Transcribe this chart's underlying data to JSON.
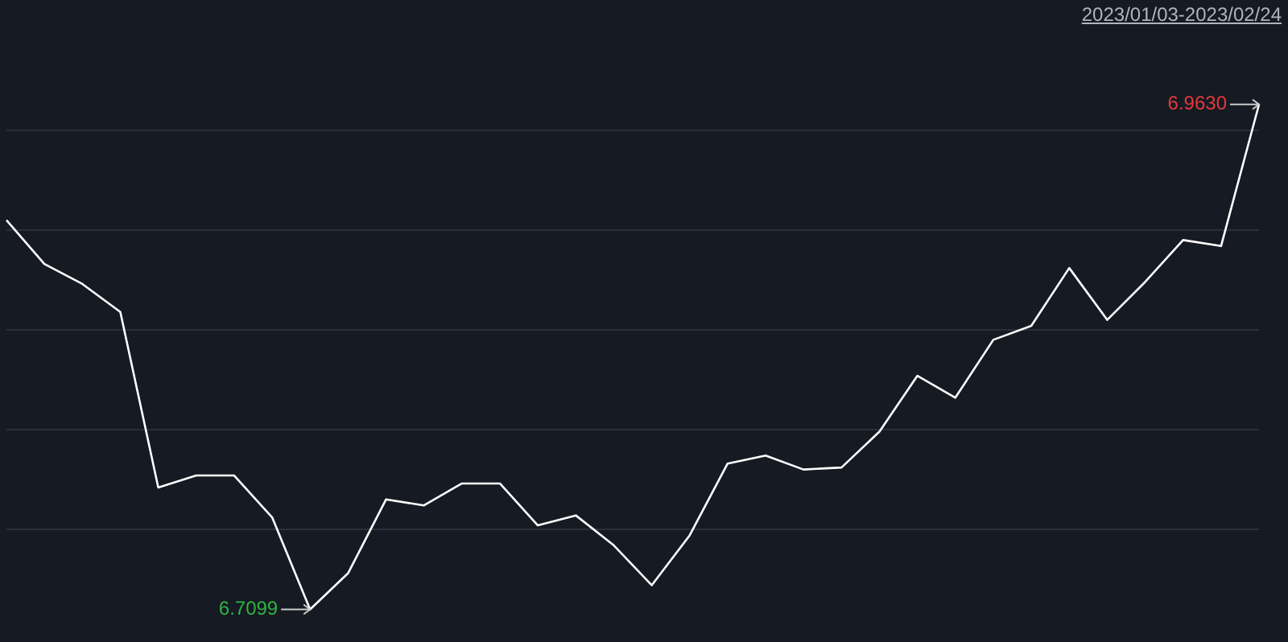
{
  "chart_data": {
    "type": "line",
    "title": "2023/01/03-2023/02/24",
    "categories": [
      null,
      null,
      null,
      null,
      null,
      null,
      null,
      null,
      null,
      null,
      null,
      null,
      null,
      null,
      null,
      null,
      null,
      null,
      null,
      null,
      null,
      null,
      null,
      null,
      null,
      null,
      null,
      null,
      null,
      null,
      null,
      null,
      null,
      null
    ],
    "series": [
      {
        "color": "#ffffff",
        "values": [
          6.905,
          6.883,
          6.873,
          6.859,
          6.771,
          6.777,
          6.777,
          6.756,
          6.7099,
          6.728,
          6.765,
          6.762,
          6.773,
          6.773,
          6.752,
          6.757,
          6.742,
          6.722,
          6.747,
          6.783,
          6.787,
          6.78,
          6.781,
          6.799,
          6.827,
          6.816,
          6.845,
          6.852,
          6.881,
          6.855,
          6.874,
          6.895,
          6.892,
          6.963
        ],
        "value_labels": [
          null,
          null,
          null,
          null,
          null,
          null,
          null,
          null,
          "6.7099",
          null,
          null,
          null,
          null,
          null,
          null,
          null,
          null,
          null,
          null,
          null,
          null,
          null,
          null,
          null,
          null,
          null,
          null,
          null,
          null,
          null,
          null,
          null,
          null,
          "6.9630"
        ]
      }
    ],
    "yticks": [
      {
        "value": 6.75,
        "label": null
      },
      {
        "value": 6.8,
        "label": null
      },
      {
        "value": 6.85,
        "label": null
      },
      {
        "value": 6.9,
        "label": null
      },
      {
        "value": 6.95,
        "label": null
      }
    ],
    "grid": "y",
    "legend": false,
    "tick_labels": false,
    "marker": "none",
    "line_style": "solid"
  }
}
